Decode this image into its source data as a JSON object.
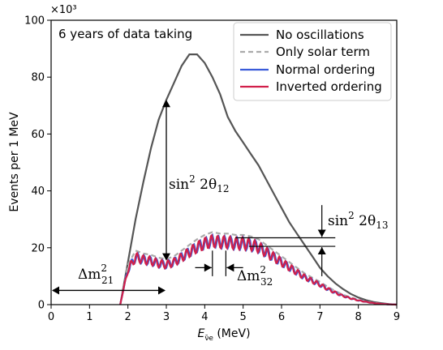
{
  "chart_data": {
    "type": "line",
    "xlabel": "E",
    "xlabel_sub": "ν̄e",
    "xlabel_unit": " (MeV)",
    "ylabel": "Events per 1 MeV",
    "y_multiplier": "×10³",
    "xlim": [
      0,
      9
    ],
    "ylim": [
      0,
      100
    ],
    "xticks": [
      0,
      1,
      2,
      3,
      4,
      5,
      6,
      7,
      8,
      9
    ],
    "yticks": [
      0,
      20,
      40,
      60,
      80,
      100
    ],
    "annotation_text": "6 years of data taking",
    "legend_position": "top-right",
    "series": [
      {
        "name": "No oscillations",
        "color": "#555555",
        "style": "solid",
        "x": [
          1.8,
          2.0,
          2.2,
          2.4,
          2.6,
          2.8,
          3.0,
          3.2,
          3.4,
          3.6,
          3.8,
          4.0,
          4.2,
          4.4,
          4.6,
          4.8,
          5.0,
          5.2,
          5.4,
          5.6,
          5.8,
          6.0,
          6.2,
          6.4,
          6.6,
          6.8,
          7.0,
          7.2,
          7.4,
          7.6,
          7.8,
          8.0,
          8.2,
          8.4,
          8.6,
          8.8,
          9.0
        ],
        "y": [
          0,
          15,
          30,
          43,
          55,
          65,
          72,
          78,
          84,
          88,
          88,
          85,
          80,
          74,
          66,
          61,
          57,
          53,
          49,
          44,
          39,
          34,
          29,
          25,
          21,
          17,
          13,
          10,
          7.5,
          5.5,
          3.8,
          2.5,
          1.6,
          0.9,
          0.5,
          0.2,
          0
        ]
      },
      {
        "name": "Only solar term",
        "color": "#aaaaaa",
        "style": "dashed",
        "x": [
          1.8,
          2.0,
          2.2,
          2.4,
          2.6,
          2.8,
          3.0,
          3.2,
          3.4,
          3.6,
          3.8,
          4.0,
          4.2,
          4.4,
          4.6,
          4.8,
          5.0,
          5.2,
          5.4,
          5.6,
          5.8,
          6.0,
          6.2,
          6.4,
          6.6,
          6.8,
          7.0,
          7.2,
          7.4,
          7.6,
          7.8,
          8.0,
          8.2,
          8.4,
          8.6,
          8.8,
          9.0
        ],
        "y": [
          0,
          14,
          19,
          18,
          17.5,
          16.5,
          16,
          17,
          19,
          21,
          23,
          24.5,
          25.5,
          25,
          25,
          24.5,
          24.5,
          24,
          23,
          21,
          19,
          17,
          15,
          13,
          11,
          9.5,
          8,
          6.3,
          4.8,
          3.5,
          2.5,
          1.7,
          1.1,
          0.6,
          0.3,
          0.1,
          0
        ]
      },
      {
        "name": "Normal ordering",
        "color": "#3a5bd9",
        "style": "solid"
      },
      {
        "name": "Inverted ordering",
        "color": "#d11f4a",
        "style": "solid"
      }
    ],
    "annotations": [
      {
        "base": "sin",
        "sup": "2",
        "arg": " 2θ",
        "sub": "12"
      },
      {
        "base": "sin",
        "sup": "2",
        "arg": " 2θ",
        "sub": "13"
      },
      {
        "base": "Δm",
        "sup": "2",
        "sub": "21"
      },
      {
        "base": "Δm",
        "sup": "2",
        "sub": "32"
      }
    ]
  }
}
